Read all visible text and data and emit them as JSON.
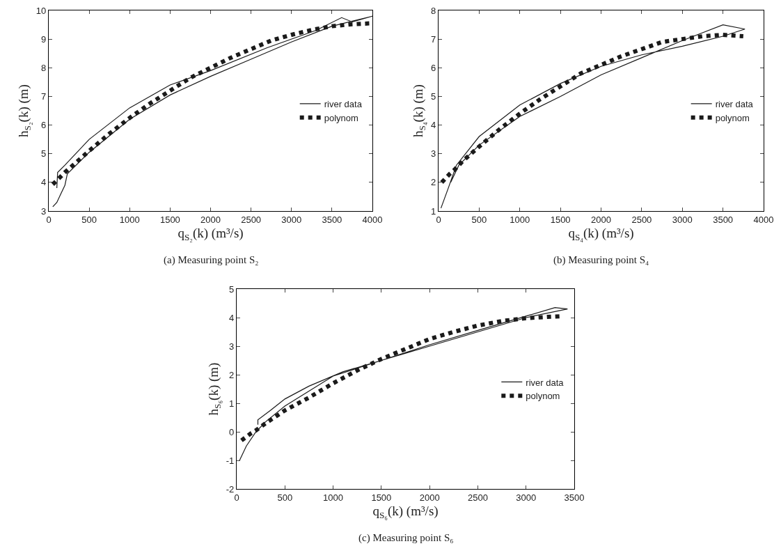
{
  "chart_data": [
    {
      "type": "line",
      "xlabel": "q$_{S₂}$(k) (m³/s)",
      "ylabel": "h$_{S₂}$(k) (m)",
      "annotations": [
        "(a) Measuring point S₂"
      ],
      "xlim": [
        0,
        4000
      ],
      "xticks": [
        0,
        500,
        1000,
        1500,
        2000,
        2500,
        3000,
        3500,
        4000
      ],
      "ylim": [
        3,
        10
      ],
      "yticks": [
        3,
        4,
        5,
        6,
        7,
        8,
        9,
        10
      ],
      "grid": false,
      "legend": "right",
      "marker": "none",
      "series": [
        {
          "name": "river data",
          "color": "#1a1a1a",
          "line_style": "solid",
          "x": [
            50,
            100,
            150,
            200,
            230,
            500,
            1000,
            1500,
            2000,
            2500,
            3000,
            3500,
            4000,
            3750,
            3620,
            3300,
            2700,
            2000,
            1500,
            1000,
            500,
            200,
            110,
            100
          ],
          "values": [
            3.15,
            3.3,
            3.6,
            3.9,
            4.3,
            5.05,
            6.2,
            7.05,
            7.7,
            8.3,
            8.9,
            9.45,
            9.8,
            9.6,
            9.75,
            9.3,
            8.7,
            7.9,
            7.4,
            6.6,
            5.5,
            4.6,
            4.35,
            3.8
          ]
        },
        {
          "name": "polynom",
          "color": "#1a1a1a",
          "line_style": "dotted",
          "x": [
            50,
            130,
            200,
            300,
            500,
            750,
            1000,
            1250,
            1500,
            1750,
            2000,
            2250,
            2500,
            2750,
            3000,
            3250,
            3500,
            3750,
            3980
          ],
          "values": [
            3.93,
            4.15,
            4.35,
            4.6,
            5.1,
            5.7,
            6.25,
            6.75,
            7.2,
            7.65,
            8.0,
            8.35,
            8.65,
            8.95,
            9.15,
            9.32,
            9.45,
            9.52,
            9.55
          ]
        }
      ]
    },
    {
      "type": "line",
      "xlabel": "q$_{S₄}$(k) (m³/s)",
      "ylabel": "h$_{S₄}$(k) (m)",
      "annotations": [
        "(b) Measuring point S₄"
      ],
      "xlim": [
        0,
        4000
      ],
      "xticks": [
        0,
        500,
        1000,
        1500,
        2000,
        2500,
        3000,
        3500,
        4000
      ],
      "ylim": [
        1,
        8
      ],
      "yticks": [
        1,
        2,
        3,
        4,
        5,
        6,
        7,
        8
      ],
      "grid": false,
      "legend": "right",
      "marker": "none",
      "series": [
        {
          "name": "river data",
          "color": "#1a1a1a",
          "line_style": "solid",
          "x": [
            30,
            120,
            220,
            500,
            1000,
            1500,
            2000,
            2500,
            3000,
            3500,
            3770,
            3500,
            3000,
            2500,
            2000,
            1500,
            1000,
            500,
            250,
            150
          ],
          "values": [
            1.1,
            1.8,
            2.6,
            3.6,
            4.7,
            5.45,
            6.05,
            6.45,
            6.75,
            7.1,
            7.35,
            7.5,
            6.95,
            6.35,
            5.75,
            5.0,
            4.3,
            3.3,
            2.6,
            2.0
          ]
        },
        {
          "name": "polynom",
          "color": "#1a1a1a",
          "line_style": "dotted",
          "x": [
            40,
            140,
            200,
            300,
            500,
            750,
            1000,
            1250,
            1500,
            1750,
            2000,
            2250,
            2500,
            2750,
            3000,
            3250,
            3500,
            3750
          ],
          "values": [
            2.0,
            2.3,
            2.45,
            2.75,
            3.25,
            3.85,
            4.4,
            4.9,
            5.35,
            5.8,
            6.1,
            6.4,
            6.65,
            6.9,
            7.0,
            7.1,
            7.15,
            7.1
          ]
        }
      ]
    },
    {
      "type": "line",
      "xlabel": "q$_{S₆}$(k) (m³/s)",
      "ylabel": "h$_{S₆}$(k) (m)",
      "annotations": [
        "(c) Measuring point S₆"
      ],
      "xlim": [
        0,
        3500
      ],
      "xticks": [
        0,
        500,
        1000,
        1500,
        2000,
        2500,
        3000,
        3500
      ],
      "ylim": [
        -2,
        5
      ],
      "yticks": [
        -2,
        -1,
        0,
        1,
        2,
        3,
        4,
        5
      ],
      "grid": false,
      "legend": "right",
      "marker": "none",
      "series": [
        {
          "name": "river data",
          "color": "#1a1a1a",
          "line_style": "solid",
          "x": [
            30,
            100,
            200,
            300,
            500,
            1000,
            1500,
            2000,
            2500,
            3000,
            3300,
            3430,
            3000,
            2500,
            2000,
            1500,
            1100,
            750,
            500,
            350,
            220,
            220
          ],
          "values": [
            -1.0,
            -0.5,
            0.0,
            0.35,
            0.9,
            1.95,
            2.5,
            3.05,
            3.55,
            4.05,
            4.35,
            4.3,
            4.0,
            3.5,
            3.0,
            2.5,
            2.1,
            1.6,
            1.15,
            0.75,
            0.42,
            0.25
          ]
        },
        {
          "name": "polynom",
          "color": "#1a1a1a",
          "line_style": "dotted",
          "x": [
            50,
            150,
            200,
            300,
            500,
            750,
            1000,
            1250,
            1500,
            1750,
            2000,
            2250,
            2500,
            2750,
            3000,
            3250,
            3380
          ],
          "values": [
            -0.3,
            -0.05,
            0.05,
            0.3,
            0.75,
            1.2,
            1.7,
            2.15,
            2.55,
            2.9,
            3.25,
            3.5,
            3.72,
            3.88,
            3.98,
            4.03,
            4.05
          ]
        }
      ]
    }
  ]
}
